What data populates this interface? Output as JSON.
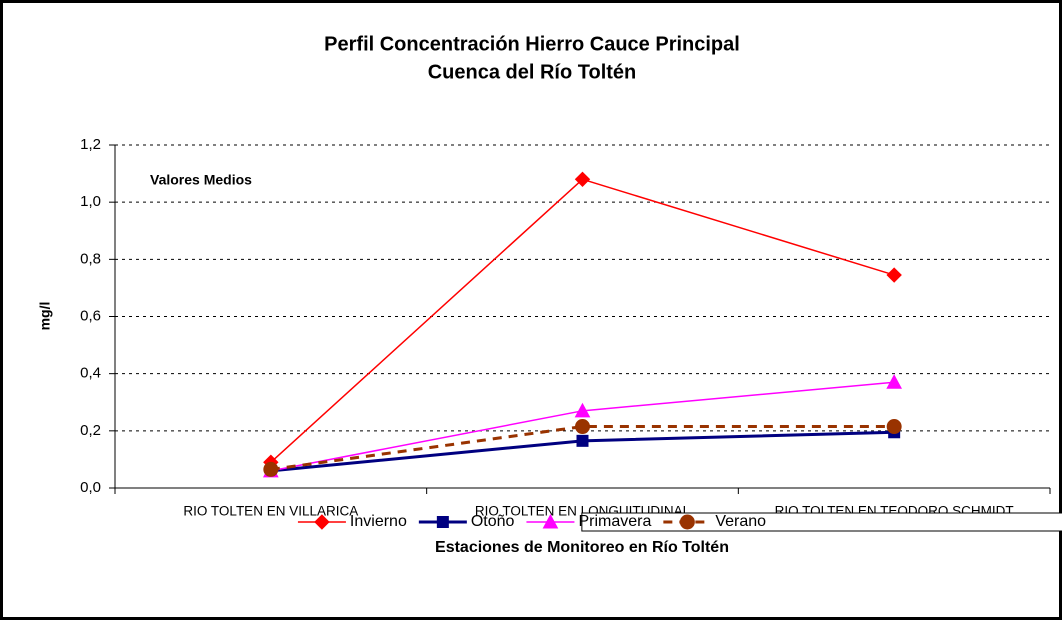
{
  "chart_data": {
    "type": "line",
    "title": "Perfil Concentración Hierro Cauce Principal",
    "subtitle": "Cuenca del Río Toltén",
    "annotation": "Valores Medios",
    "y_label": "mg/l",
    "x_label": "Estaciones de Monitoreo en Río Toltén",
    "categories": [
      "RIO TOLTEN EN VILLARICA",
      "RIO TOLTEN EN LONGUITUDINAL",
      "RIO TOLTEN EN TEODORO SCHMIDT"
    ],
    "ylim": [
      0,
      1.2
    ],
    "yticks": [
      {
        "value": 0,
        "label": "0,0"
      },
      {
        "value": 0.2,
        "label": "0,2"
      },
      {
        "value": 0.4,
        "label": "0,4"
      },
      {
        "value": 0.6,
        "label": "0,6"
      },
      {
        "value": 0.8,
        "label": "0,8"
      },
      {
        "value": 1.0,
        "label": "1,0"
      },
      {
        "value": 1.2,
        "label": "1,2"
      }
    ],
    "grid": true,
    "legend": "bottom",
    "series": [
      {
        "name": "Invierno",
        "color": "#ff0000",
        "marker": "diamond",
        "values": [
          0.09,
          1.08,
          0.745
        ]
      },
      {
        "name": "Otoño",
        "color": "#000080",
        "marker": "square",
        "values": [
          0.06,
          0.165,
          0.195
        ]
      },
      {
        "name": "Primavera",
        "color": "#ff00ff",
        "marker": "triangle",
        "values": [
          0.06,
          0.27,
          0.37
        ]
      },
      {
        "name": "Verano",
        "color": "#993300",
        "marker": "circle",
        "dashed": true,
        "values": [
          0.065,
          0.215,
          0.215
        ]
      }
    ]
  }
}
